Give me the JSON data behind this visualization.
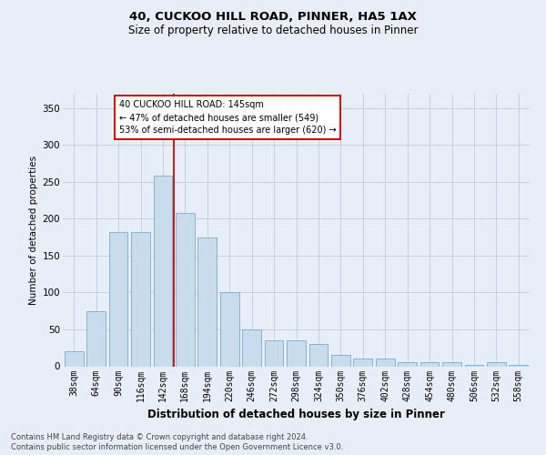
{
  "title1": "40, CUCKOO HILL ROAD, PINNER, HA5 1AX",
  "title2": "Size of property relative to detached houses in Pinner",
  "xlabel": "Distribution of detached houses by size in Pinner",
  "ylabel": "Number of detached properties",
  "footnote1": "Contains HM Land Registry data © Crown copyright and database right 2024.",
  "footnote2": "Contains public sector information licensed under the Open Government Licence v3.0.",
  "annotation_line1": "40 CUCKOO HILL ROAD: 145sqm",
  "annotation_line2": "← 47% of detached houses are smaller (549)",
  "annotation_line3": "53% of semi-detached houses are larger (620) →",
  "bar_color": "#c9dced",
  "bar_edge_color": "#7aabcf",
  "grid_color": "#c8d0df",
  "marker_color": "#cc0000",
  "background_color": "#e8eef7",
  "categories": [
    "38sqm",
    "64sqm",
    "90sqm",
    "116sqm",
    "142sqm",
    "168sqm",
    "194sqm",
    "220sqm",
    "246sqm",
    "272sqm",
    "298sqm",
    "324sqm",
    "350sqm",
    "376sqm",
    "402sqm",
    "428sqm",
    "454sqm",
    "480sqm",
    "506sqm",
    "532sqm",
    "558sqm"
  ],
  "values": [
    20,
    75,
    182,
    182,
    258,
    208,
    175,
    100,
    50,
    35,
    35,
    30,
    15,
    10,
    10,
    5,
    5,
    5,
    2,
    5,
    2
  ],
  "marker_bin": 4,
  "ylim": [
    0,
    370
  ],
  "yticks": [
    0,
    50,
    100,
    150,
    200,
    250,
    300,
    350
  ]
}
